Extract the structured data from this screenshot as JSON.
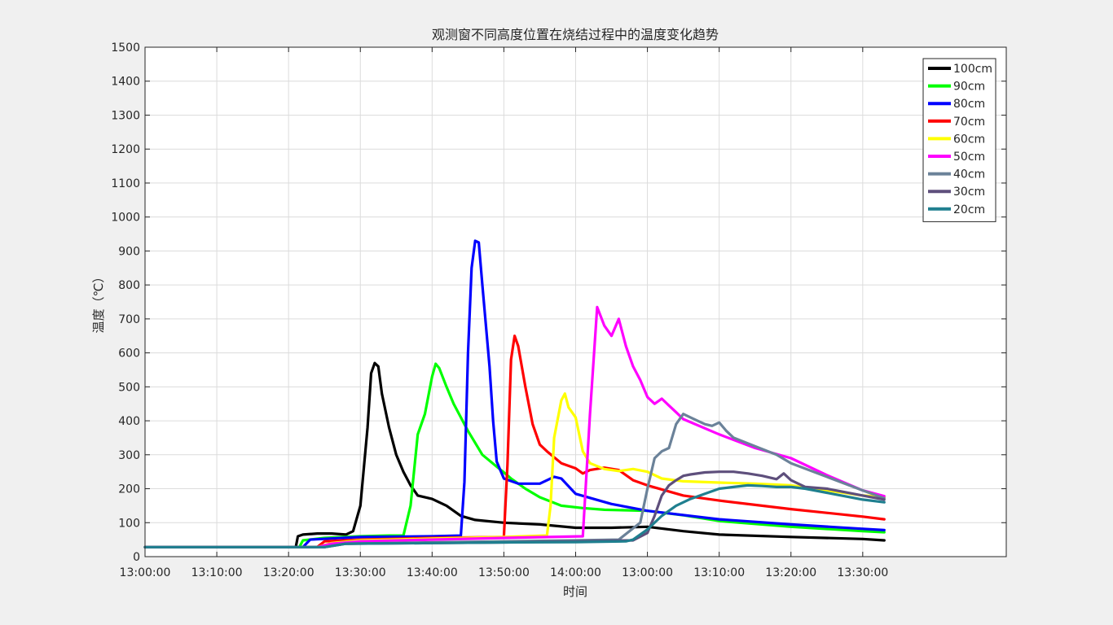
{
  "chart_data": {
    "type": "line",
    "title": "观测窗不同高度位置在烧结过程中的温度变化趋势",
    "xlabel": "时间",
    "ylabel": "温度（℃）",
    "ylim": [
      0,
      1500
    ],
    "yticks": [
      0,
      100,
      200,
      300,
      400,
      500,
      600,
      700,
      800,
      900,
      1000,
      1100,
      1200,
      1300,
      1400,
      1500
    ],
    "xlim_minutes": [
      0,
      120
    ],
    "xtick_labels": [
      "13:00:00",
      "13:10:00",
      "13:20:00",
      "13:30:00",
      "13:40:00",
      "13:50:00",
      "14:00:00",
      "13:00:00",
      "13:10:00",
      "13:20:00",
      "13:30:00"
    ],
    "grid": true,
    "legend_position": "top-right",
    "series": [
      {
        "name": "100cm",
        "color": "#000000",
        "x": [
          0,
          21,
          21.3,
          22,
          24,
          26,
          28,
          29,
          30,
          31,
          31.5,
          32,
          32.5,
          33,
          34,
          35,
          36,
          37,
          38,
          40,
          42,
          44,
          46,
          50,
          55,
          60,
          65,
          70,
          75,
          80,
          90,
          100,
          103
        ],
        "y": [
          28,
          28,
          60,
          65,
          68,
          68,
          65,
          75,
          150,
          380,
          540,
          570,
          560,
          480,
          380,
          300,
          250,
          210,
          180,
          170,
          150,
          120,
          108,
          100,
          95,
          85,
          85,
          88,
          75,
          65,
          58,
          52,
          48
        ]
      },
      {
        "name": "90cm",
        "color": "#00ff00",
        "x": [
          0,
          21.5,
          22,
          25,
          30,
          34,
          36,
          37,
          38,
          39,
          40,
          40.5,
          41,
          42,
          43,
          45,
          47,
          49,
          50,
          51,
          53,
          55,
          58,
          61,
          64,
          70,
          75,
          80,
          90,
          100,
          103
        ],
        "y": [
          28,
          28,
          48,
          55,
          60,
          62,
          62,
          150,
          360,
          420,
          530,
          568,
          555,
          500,
          450,
          370,
          300,
          265,
          248,
          230,
          200,
          175,
          150,
          143,
          138,
          135,
          122,
          105,
          88,
          75,
          72
        ]
      },
      {
        "name": "80cm",
        "color": "#0000ff",
        "x": [
          0,
          22,
          23,
          30,
          40,
          44,
          44.5,
          45,
          45.5,
          46,
          46.5,
          47,
          48,
          48.5,
          49,
          50,
          52,
          55,
          57,
          58,
          60,
          65,
          70,
          80,
          90,
          100,
          103
        ],
        "y": [
          28,
          28,
          50,
          58,
          60,
          62,
          220,
          600,
          850,
          930,
          925,
          800,
          560,
          400,
          280,
          230,
          215,
          215,
          235,
          230,
          185,
          155,
          135,
          110,
          95,
          82,
          78
        ]
      },
      {
        "name": "70cm",
        "color": "#ff0000",
        "x": [
          0,
          24,
          25,
          30,
          40,
          50,
          50.5,
          51,
          51.5,
          52,
          53,
          54,
          55,
          56,
          58,
          60,
          61,
          62,
          64,
          66,
          68,
          70,
          75,
          80,
          90,
          100,
          103
        ],
        "y": [
          28,
          28,
          45,
          50,
          55,
          58,
          270,
          580,
          650,
          620,
          500,
          390,
          330,
          310,
          275,
          260,
          245,
          255,
          262,
          255,
          225,
          210,
          180,
          165,
          140,
          118,
          110
        ]
      },
      {
        "name": "60cm",
        "color": "#ffff00",
        "x": [
          0,
          24,
          26,
          30,
          40,
          50,
          56,
          56.5,
          57,
          58,
          58.5,
          59,
          60,
          61,
          62,
          64,
          66,
          68,
          70,
          72,
          75,
          80,
          85,
          90,
          95,
          100,
          103
        ],
        "y": [
          28,
          28,
          40,
          48,
          53,
          58,
          62,
          150,
          350,
          460,
          480,
          440,
          410,
          310,
          275,
          258,
          252,
          258,
          250,
          230,
          222,
          218,
          215,
          210,
          195,
          180,
          175
        ]
      },
      {
        "name": "50cm",
        "color": "#ff00ff",
        "x": [
          0,
          24,
          26,
          30,
          40,
          50,
          61,
          62,
          63,
          64,
          65,
          66,
          67,
          68,
          69,
          70,
          71,
          72,
          73,
          74,
          75,
          80,
          85,
          90,
          95,
          100,
          103
        ],
        "y": [
          28,
          28,
          38,
          45,
          50,
          55,
          60,
          420,
          735,
          680,
          650,
          700,
          620,
          560,
          520,
          470,
          450,
          465,
          445,
          425,
          405,
          360,
          320,
          290,
          240,
          195,
          178
        ]
      },
      {
        "name": "40cm",
        "color": "#6b8299",
        "x": [
          0,
          25,
          28,
          40,
          50,
          60,
          66,
          69,
          70,
          71,
          72,
          73,
          74,
          75,
          76,
          77,
          78,
          79,
          80,
          81,
          82,
          85,
          88,
          90,
          95,
          100,
          103
        ],
        "y": [
          28,
          28,
          38,
          42,
          45,
          48,
          50,
          100,
          200,
          290,
          310,
          320,
          390,
          420,
          410,
          400,
          390,
          385,
          395,
          370,
          350,
          325,
          300,
          275,
          235,
          195,
          172
        ]
      },
      {
        "name": "30cm",
        "color": "#5e4f7c",
        "x": [
          0,
          25,
          28,
          40,
          50,
          60,
          68,
          70,
          71,
          72,
          73,
          74,
          75,
          76,
          78,
          80,
          82,
          84,
          86,
          88,
          89,
          90,
          92,
          95,
          100,
          103
        ],
        "y": [
          28,
          28,
          38,
          40,
          42,
          45,
          48,
          70,
          120,
          180,
          210,
          225,
          238,
          242,
          248,
          250,
          250,
          245,
          238,
          228,
          245,
          225,
          205,
          200,
          180,
          168
        ]
      },
      {
        "name": "20cm",
        "color": "#1f7f8f",
        "x": [
          0,
          25,
          28,
          40,
          50,
          60,
          67,
          68,
          70,
          72,
          74,
          76,
          78,
          80,
          82,
          84,
          86,
          88,
          90,
          92,
          95,
          100,
          103
        ],
        "y": [
          28,
          28,
          38,
          40,
          42,
          43,
          45,
          50,
          80,
          120,
          150,
          170,
          185,
          200,
          205,
          210,
          208,
          205,
          205,
          200,
          188,
          168,
          160
        ]
      }
    ]
  }
}
